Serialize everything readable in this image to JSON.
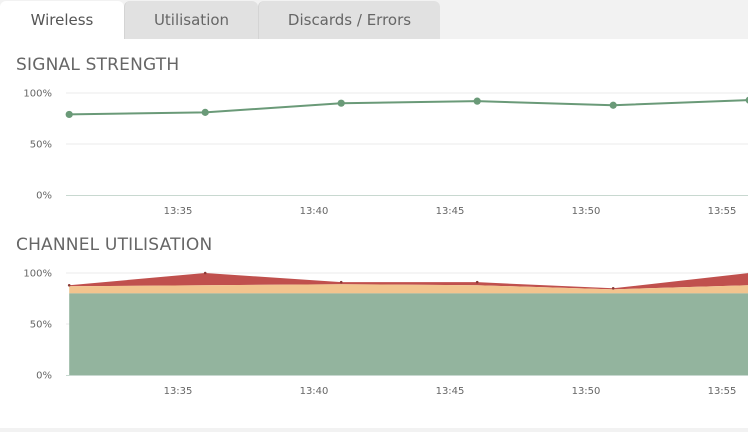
{
  "tabs": [
    {
      "label": "Wireless",
      "active": true
    },
    {
      "label": "Utilisation",
      "active": false
    },
    {
      "label": "Discards / Errors",
      "active": false
    }
  ],
  "sections": {
    "signal_title": "SIGNAL STRENGTH",
    "channel_title": "CHANNEL UTILISATION"
  },
  "colors": {
    "line": "#6a9a78",
    "area_green": "#93b49e",
    "area_orange": "#f2c48e",
    "area_red": "#c0504d",
    "grid": "#ebebeb",
    "axis": "#c8d8d0"
  },
  "chart_data": [
    {
      "type": "line",
      "title": "SIGNAL STRENGTH",
      "x_ticks": [
        "13:35",
        "13:40",
        "13:45",
        "13:50",
        "13:55"
      ],
      "y_ticks": [
        "100%",
        "50%",
        "0%"
      ],
      "ylim": [
        0,
        100
      ],
      "x": [
        "13:31",
        "13:36",
        "13:41",
        "13:46",
        "13:51",
        "13:56"
      ],
      "series": [
        {
          "values": [
            79,
            81,
            90,
            92,
            88,
            93
          ]
        }
      ]
    },
    {
      "type": "area",
      "title": "CHANNEL UTILISATION",
      "x_ticks": [
        "13:35",
        "13:40",
        "13:45",
        "13:50",
        "13:55"
      ],
      "y_ticks": [
        "100%",
        "50%",
        "0%"
      ],
      "ylim": [
        0,
        100
      ],
      "x": [
        "13:31",
        "13:36",
        "13:41",
        "13:46",
        "13:51",
        "13:56"
      ],
      "stacked": true,
      "series": [
        {
          "values": [
            80,
            80,
            80,
            80,
            80,
            80
          ]
        },
        {
          "values": [
            7,
            8,
            9,
            8,
            4,
            8
          ]
        },
        {
          "values": [
            1,
            12,
            2,
            3,
            1,
            12
          ]
        }
      ]
    }
  ]
}
